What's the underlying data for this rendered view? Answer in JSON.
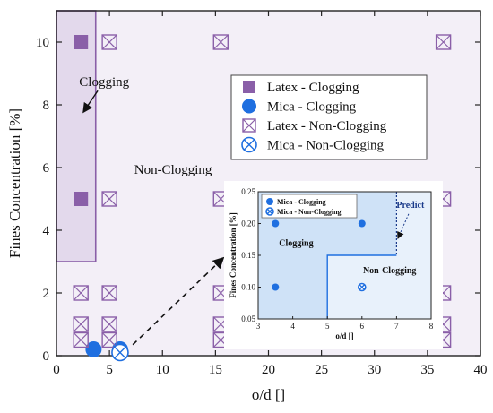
{
  "chart_data": [
    {
      "type": "scatter",
      "xlabel": "o/d []",
      "ylabel": "Fines Concentration [%]",
      "xlim": [
        0,
        40
      ],
      "ylim": [
        0,
        11
      ],
      "xticks": [
        0,
        5,
        10,
        15,
        20,
        25,
        30,
        35,
        40
      ],
      "yticks": [
        0,
        2,
        4,
        6,
        8,
        10
      ],
      "grid": false,
      "legend_position": "top-right",
      "background_color": "#f3eff7",
      "series": [
        {
          "name": "Latex - Clogging",
          "marker": "filled-square",
          "color": "#8a5fa8",
          "points": [
            [
              2.3,
              10
            ],
            [
              2.3,
              5
            ]
          ]
        },
        {
          "name": "Mica - Clogging",
          "marker": "filled-circle",
          "color": "#1f6fe0",
          "points": [
            [
              3.5,
              0.2
            ],
            [
              6,
              0.2
            ]
          ]
        },
        {
          "name": "Latex - Non-Clogging",
          "marker": "crossed-square",
          "color": "#8a5fa8",
          "points": [
            [
              5,
              10
            ],
            [
              15.5,
              10
            ],
            [
              36.5,
              10
            ],
            [
              5,
              5
            ],
            [
              15.5,
              5
            ],
            [
              36.5,
              5
            ],
            [
              2.3,
              2
            ],
            [
              5,
              2
            ],
            [
              15.5,
              2
            ],
            [
              36.5,
              2
            ],
            [
              2.3,
              1
            ],
            [
              5,
              1
            ],
            [
              15.5,
              1
            ],
            [
              36.5,
              1
            ],
            [
              2.3,
              0.5
            ],
            [
              5,
              0.5
            ],
            [
              15.5,
              0.5
            ],
            [
              36.5,
              0.5
            ]
          ]
        },
        {
          "name": "Mica - Non-Clogging",
          "marker": "crossed-circle",
          "color": "#1f6fe0",
          "points": [
            [
              6,
              0.1
            ]
          ]
        }
      ],
      "regions": [
        {
          "label": "Clogging",
          "x": [
            0,
            3.7
          ],
          "y": [
            3,
            11
          ],
          "color": "#e3d9ec"
        }
      ],
      "annotations": [
        {
          "text": "Clogging",
          "at": [
            4.5,
            8.6
          ]
        },
        {
          "text": "Non-Clogging",
          "at": [
            11,
            5.8
          ]
        }
      ]
    },
    {
      "type": "scatter",
      "xlabel": "o/d []",
      "ylabel": "Fines Concentration [%]",
      "xlim": [
        3,
        8
      ],
      "ylim": [
        0.05,
        0.25
      ],
      "xticks": [
        3,
        4,
        5,
        6,
        7,
        8
      ],
      "yticks": [
        0.05,
        0.1,
        0.15,
        0.2,
        0.25
      ],
      "legend_position": "top-left",
      "series": [
        {
          "name": "Mica - Clogging",
          "marker": "filled-circle",
          "color": "#1f6fe0",
          "points": [
            [
              3.5,
              0.2
            ],
            [
              6,
              0.2
            ],
            [
              3.5,
              0.1
            ]
          ]
        },
        {
          "name": "Mica - Non-Clogging",
          "marker": "crossed-circle",
          "color": "#1f6fe0",
          "points": [
            [
              6,
              0.1
            ]
          ]
        }
      ],
      "clogging_boundary": [
        [
          3,
          0.25
        ],
        [
          7,
          0.25
        ],
        [
          7,
          0.15
        ],
        [
          5,
          0.15
        ],
        [
          5,
          0.05
        ],
        [
          3,
          0.05
        ]
      ],
      "predict_line_x": 7,
      "annotations": [
        {
          "text": "Clogging",
          "at": [
            4.1,
            0.165
          ]
        },
        {
          "text": "Non-Clogging",
          "at": [
            6.8,
            0.122
          ]
        },
        {
          "text": "Predict",
          "at": [
            7.4,
            0.225
          ]
        }
      ]
    }
  ],
  "colors": {
    "latex": "#8a5fa8",
    "mica": "#1f6fe0",
    "clog_region": "#e3d9ec",
    "plot_bg": "#f3eff7",
    "inset_clog": "#cfe2f7",
    "inset_bg": "#e8f1fb"
  }
}
